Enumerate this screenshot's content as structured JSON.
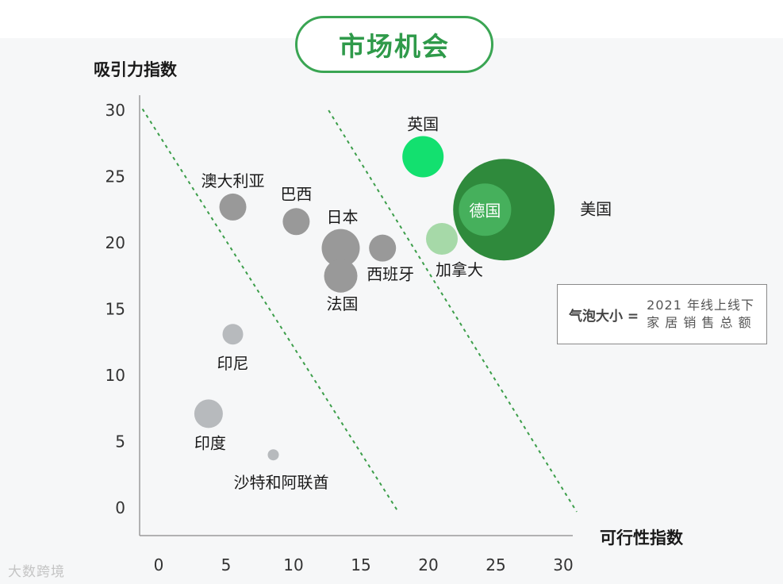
{
  "chart_data": {
    "type": "scatter",
    "title": "市场机会",
    "xlabel": "可行性指数",
    "ylabel": "吸引力指数",
    "x_ticks": [
      "0",
      "5",
      "10",
      "15",
      "20",
      "25",
      "30"
    ],
    "y_ticks": [
      "0",
      "5",
      "10",
      "15",
      "20",
      "25",
      "30"
    ],
    "xlim": [
      -1.5,
      31
    ],
    "ylim": [
      -2,
      31
    ],
    "bubble_size_label": "气泡大小 =",
    "bubble_size_desc_line1": "2021 年线上线下",
    "bubble_size_desc_line2": "家 居 销 售 总 额",
    "points": [
      {
        "label": "英国",
        "x": 19.6,
        "y": 26.5,
        "size": 26,
        "color": "#13e06f"
      },
      {
        "label": "美国",
        "x": 25.6,
        "y": 22.5,
        "size": 64,
        "color": "#2f8a3c"
      },
      {
        "label": "德国",
        "x": 24.2,
        "y": 22.5,
        "size": 33,
        "color": "#46b05c"
      },
      {
        "label": "加拿大",
        "x": 21.0,
        "y": 20.3,
        "size": 20,
        "color": "#a6d9a8"
      },
      {
        "label": "澳大利亚",
        "x": 5.5,
        "y": 22.7,
        "size": 17,
        "color": "#999999"
      },
      {
        "label": "巴西",
        "x": 10.2,
        "y": 21.6,
        "size": 17,
        "color": "#999999"
      },
      {
        "label": "日本",
        "x": 13.5,
        "y": 19.6,
        "size": 24,
        "color": "#999999"
      },
      {
        "label": "西班牙",
        "x": 16.6,
        "y": 19.6,
        "size": 17,
        "color": "#999999"
      },
      {
        "label": "法国",
        "x": 13.5,
        "y": 17.5,
        "size": 21,
        "color": "#999999"
      },
      {
        "label": "印尼",
        "x": 5.5,
        "y": 13.1,
        "size": 13,
        "color": "#b7babd"
      },
      {
        "label": "印度",
        "x": 3.7,
        "y": 7.1,
        "size": 18,
        "color": "#b7babd"
      },
      {
        "label": "沙特和阿联酋",
        "x": 8.5,
        "y": 4.0,
        "size": 7,
        "color": "#b7babd"
      }
    ],
    "threshold_lines": [
      {
        "from": [
          -1.2,
          30.1
        ],
        "to": [
          17.7,
          -0.2
        ]
      },
      {
        "from": [
          12.6,
          30.0
        ],
        "to": [
          31.0,
          -0.3
        ]
      }
    ],
    "line_color": "#3c9e4a"
  },
  "watermark": "大数跨境"
}
